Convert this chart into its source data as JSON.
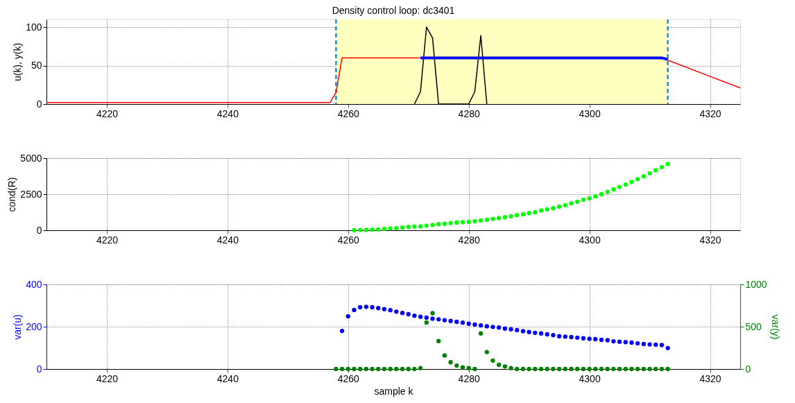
{
  "chart_data": [
    {
      "type": "line",
      "title": "Density control loop: dc3401",
      "ylabel": "u(k), y(k)",
      "xlim": [
        4210,
        4325
      ],
      "xticks": [
        4220,
        4240,
        4260,
        4280,
        4300,
        4320
      ],
      "ylim": [
        0,
        110
      ],
      "yticks": [
        0,
        50,
        100
      ],
      "grid": true,
      "marker": "none",
      "line_style": "solid",
      "bands": [
        {
          "axis": "x",
          "from": 4258,
          "to": 4313,
          "color": "#ffffc0"
        }
      ],
      "ref_lines": [
        {
          "axis": "x",
          "value": 4258,
          "color": "#1e90d0",
          "line_style": "dashed"
        },
        {
          "axis": "x",
          "value": 4313,
          "color": "#1e90d0",
          "line_style": "dashed"
        }
      ],
      "series": [
        {
          "color": "#ff0000",
          "x": [
            4210,
            4257,
            4258,
            4259,
            4272,
            4290,
            4313,
            4325
          ],
          "values": [
            2,
            2,
            15,
            60,
            60,
            null,
            57,
            21
          ]
        },
        {
          "color": "#000000",
          "x": [
            4271,
            4272,
            4273,
            4274,
            4275,
            4280,
            4281,
            4282,
            4283
          ],
          "values": [
            0,
            16,
            100,
            86,
            0,
            0,
            16,
            89,
            0
          ]
        },
        {
          "color": "#0000ff",
          "x": [
            4272,
            4312,
            4313
          ],
          "values": [
            60,
            60,
            58
          ]
        }
      ]
    },
    {
      "type": "scatter",
      "ylabel": "cond(R)",
      "xlim": [
        4210,
        4325
      ],
      "xticks": [
        4220,
        4240,
        4260,
        4280,
        4300,
        4320
      ],
      "ylim": [
        0,
        5000
      ],
      "yticks": [
        0,
        2500,
        5000
      ],
      "grid": true,
      "marker": "circle",
      "series": [
        {
          "color": "#00ff00",
          "x": [
            4261,
            4262,
            4263,
            4264,
            4265,
            4266,
            4267,
            4268,
            4269,
            4270,
            4271,
            4272,
            4273,
            4274,
            4275,
            4276,
            4277,
            4278,
            4279,
            4280,
            4281,
            4282,
            4283,
            4284,
            4285,
            4286,
            4287,
            4288,
            4289,
            4290,
            4291,
            4292,
            4293,
            4294,
            4295,
            4296,
            4297,
            4298,
            4299,
            4300,
            4301,
            4302,
            4303,
            4304,
            4305,
            4306,
            4307,
            4308,
            4309,
            4310,
            4311,
            4312,
            4313
          ],
          "values": [
            0,
            20,
            30,
            50,
            60,
            100,
            130,
            150,
            180,
            230,
            260,
            270,
            320,
            370,
            420,
            450,
            500,
            530,
            560,
            580,
            630,
            680,
            730,
            790,
            840,
            900,
            970,
            1050,
            1110,
            1190,
            1240,
            1370,
            1450,
            1530,
            1640,
            1740,
            1870,
            1980,
            2110,
            2220,
            2350,
            2500,
            2660,
            2840,
            3000,
            3170,
            3350,
            3540,
            3740,
            3950,
            4160,
            4380,
            4600
          ]
        }
      ]
    },
    {
      "type": "scatter",
      "ylabel": "var(u)",
      "y2label": "var(y)",
      "xlabel": "sample k",
      "xlim": [
        4210,
        4325
      ],
      "xticks": [
        4220,
        4240,
        4260,
        4280,
        4300,
        4320
      ],
      "ylim": [
        0,
        400
      ],
      "yticks": [
        0,
        200,
        400
      ],
      "y2lim": [
        0,
        1000
      ],
      "y2ticks": [
        0,
        500,
        1000
      ],
      "grid": true,
      "marker": "circle",
      "series": [
        {
          "color": "#0000ff",
          "axis": "y",
          "x": [
            4259,
            4260,
            4261,
            4262,
            4263,
            4264,
            4265,
            4266,
            4267,
            4268,
            4269,
            4270,
            4271,
            4272,
            4273,
            4274,
            4275,
            4276,
            4277,
            4278,
            4279,
            4280,
            4281,
            4282,
            4283,
            4284,
            4285,
            4286,
            4287,
            4288,
            4289,
            4290,
            4291,
            4292,
            4293,
            4294,
            4295,
            4296,
            4297,
            4298,
            4299,
            4300,
            4301,
            4302,
            4303,
            4304,
            4305,
            4306,
            4307,
            4308,
            4309,
            4310,
            4311,
            4312,
            4313
          ],
          "values": [
            180,
            249,
            279,
            292,
            294,
            292,
            288,
            283,
            278,
            271,
            265,
            259,
            252,
            247,
            243,
            238,
            235,
            231,
            227,
            223,
            219,
            214,
            210,
            206,
            202,
            199,
            196,
            191,
            188,
            184,
            179,
            175,
            171,
            168,
            164,
            160,
            155,
            153,
            151,
            148,
            145,
            143,
            141,
            138,
            136,
            131,
            129,
            127,
            125,
            121,
            118,
            116,
            115,
            113,
            99
          ]
        },
        {
          "color": "#008000",
          "axis": "y2",
          "x": [
            4258,
            4259,
            4260,
            4261,
            4262,
            4263,
            4264,
            4265,
            4266,
            4267,
            4268,
            4269,
            4270,
            4271,
            4272,
            4273,
            4274,
            4275,
            4276,
            4277,
            4278,
            4279,
            4280,
            4281,
            4282,
            4283,
            4284,
            4285,
            4286,
            4287,
            4288,
            4289,
            4290,
            4291,
            4292,
            4293,
            4294,
            4295,
            4296,
            4297,
            4298,
            4299,
            4300,
            4301,
            4302,
            4303,
            4304,
            4305,
            4306,
            4307,
            4308,
            4309,
            4310,
            4311,
            4312,
            4313
          ],
          "values": [
            0,
            0,
            0,
            0,
            0,
            0,
            0,
            0,
            0,
            0,
            0,
            0,
            0,
            0,
            10,
            550,
            660,
            330,
            160,
            80,
            40,
            20,
            10,
            0,
            420,
            200,
            100,
            50,
            30,
            10,
            0,
            0,
            0,
            0,
            0,
            0,
            0,
            0,
            0,
            0,
            0,
            0,
            0,
            0,
            0,
            0,
            0,
            0,
            0,
            0,
            0,
            0,
            0,
            0,
            0,
            0
          ]
        }
      ]
    }
  ]
}
